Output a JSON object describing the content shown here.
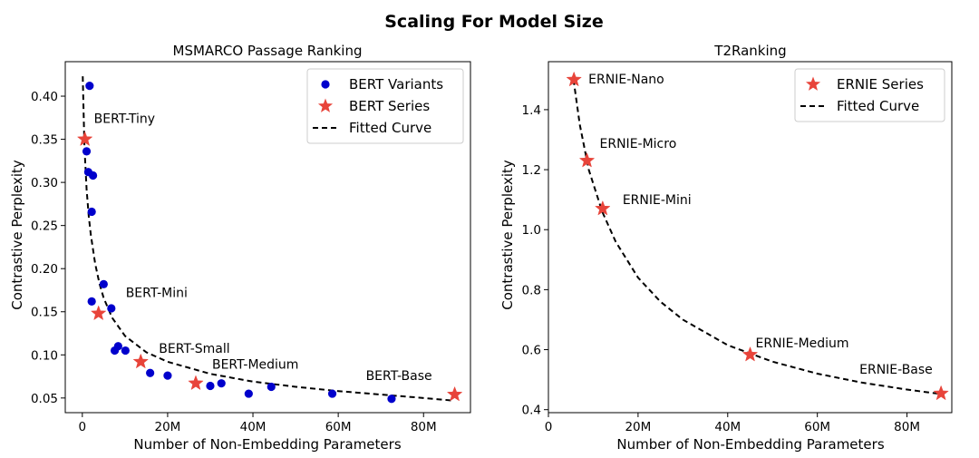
{
  "figure": {
    "title": "Scaling For Model Size"
  },
  "chart_data": [
    {
      "type": "scatter",
      "title": "MSMARCO Passage Ranking",
      "xlabel": "Number of Non-Embedding Parameters",
      "ylabel": "Contrastive Perplexity",
      "xlim": [
        -4,
        91
      ],
      "ylim": [
        0.033,
        0.44
      ],
      "xticks": [
        0,
        20,
        40,
        60,
        80
      ],
      "xtick_labels": [
        "0",
        "20M",
        "40M",
        "60M",
        "80M"
      ],
      "yticks": [
        0.05,
        0.1,
        0.15,
        0.2,
        0.25,
        0.3,
        0.35,
        0.4
      ],
      "ytick_labels": [
        "0.05",
        "0.10",
        "0.15",
        "0.20",
        "0.25",
        "0.30",
        "0.35",
        "0.40"
      ],
      "grid": false,
      "legend_position": "top-right",
      "series": [
        {
          "name": "BERT Variants",
          "marker": "circle",
          "color": "#0000cc",
          "points": [
            [
              1.7,
              0.412
            ],
            [
              1.0,
              0.336
            ],
            [
              1.4,
              0.312
            ],
            [
              2.5,
              0.308
            ],
            [
              2.2,
              0.266
            ],
            [
              5.0,
              0.182
            ],
            [
              2.2,
              0.162
            ],
            [
              6.8,
              0.154
            ],
            [
              7.6,
              0.105
            ],
            [
              8.4,
              0.11
            ],
            [
              10.1,
              0.105
            ],
            [
              15.9,
              0.079
            ],
            [
              20.0,
              0.076
            ],
            [
              30.0,
              0.064
            ],
            [
              32.6,
              0.067
            ],
            [
              39.0,
              0.055
            ],
            [
              44.3,
              0.063
            ],
            [
              58.6,
              0.055
            ],
            [
              72.5,
              0.049
            ]
          ]
        },
        {
          "name": "BERT Series",
          "marker": "star",
          "color": "#e8443a",
          "points": [
            [
              0.6,
              0.35
            ],
            [
              3.8,
              0.148
            ],
            [
              13.7,
              0.092
            ],
            [
              26.6,
              0.067
            ],
            [
              87.3,
              0.054
            ]
          ],
          "point_labels": [
            "BERT-Tiny",
            "BERT-Mini",
            "BERT-Small",
            "BERT-Medium",
            "BERT-Base"
          ]
        },
        {
          "name": "Fitted Curve",
          "line": "dashed",
          "color": "#000000",
          "x": [
            0.1,
            0.2,
            0.5,
            1,
            1.5,
            2,
            3,
            4,
            5,
            7,
            10,
            15,
            20,
            30,
            40,
            50,
            60,
            70,
            80,
            87
          ],
          "y": [
            0.423,
            0.402,
            0.341,
            0.292,
            0.261,
            0.239,
            0.206,
            0.183,
            0.166,
            0.143,
            0.122,
            0.103,
            0.092,
            0.078,
            0.069,
            0.063,
            0.058,
            0.054,
            0.05,
            0.047
          ]
        }
      ]
    },
    {
      "type": "scatter",
      "title": "T2Ranking",
      "xlabel": "Number of Non-Embedding Parameters",
      "ylabel": "Contrastive Perplexity",
      "xlim": [
        0,
        90
      ],
      "ylim": [
        0.39,
        1.56
      ],
      "xticks": [
        0,
        20,
        40,
        60,
        80
      ],
      "xtick_labels": [
        "0",
        "20M",
        "40M",
        "60M",
        "80M"
      ],
      "yticks": [
        0.4,
        0.6,
        0.8,
        1.0,
        1.2,
        1.4
      ],
      "ytick_labels": [
        "0.4",
        "0.6",
        "0.8",
        "1.0",
        "1.2",
        "1.4"
      ],
      "grid": false,
      "legend_position": "top-right",
      "series": [
        {
          "name": "ERNIE Series",
          "marker": "star",
          "color": "#e8443a",
          "points": [
            [
              5.7,
              1.5
            ],
            [
              8.6,
              1.23
            ],
            [
              12.1,
              1.07
            ],
            [
              45.0,
              0.583
            ],
            [
              87.6,
              0.454
            ]
          ],
          "point_labels": [
            "ERNIE-Nano",
            "ERNIE-Micro",
            "ERNIE-Mini",
            "ERNIE-Medium",
            "ERNIE-Base"
          ]
        },
        {
          "name": "Fitted Curve",
          "line": "dashed",
          "color": "#000000",
          "x": [
            5.6,
            7,
            9,
            12,
            15,
            20,
            25,
            30,
            40,
            50,
            60,
            70,
            80,
            87.6
          ],
          "y": [
            1.5,
            1.35,
            1.2,
            1.06,
            0.96,
            0.84,
            0.76,
            0.7,
            0.615,
            0.56,
            0.52,
            0.49,
            0.467,
            0.452
          ]
        }
      ]
    }
  ]
}
